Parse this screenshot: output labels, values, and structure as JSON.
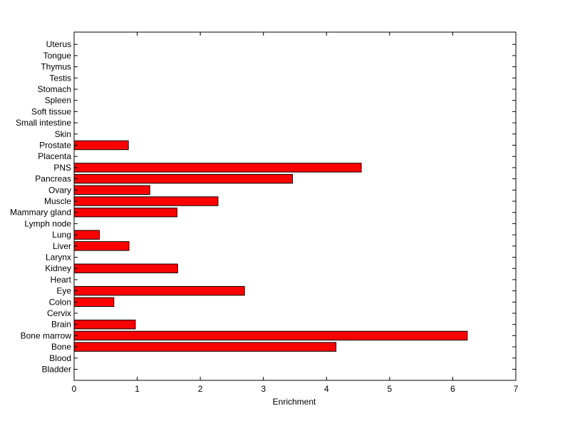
{
  "colors": {
    "bar_fill": "#ff0000",
    "bar_stroke": "#000000",
    "axis": "#000000",
    "background": "#ffffff"
  },
  "chart_data": {
    "type": "bar",
    "orientation": "horizontal",
    "title": "",
    "xlabel": "Enrichment",
    "ylabel": "",
    "xlim": [
      0,
      7
    ],
    "xticks": [
      "0",
      "1",
      "2",
      "3",
      "4",
      "5",
      "6",
      "7"
    ],
    "grid": false,
    "categories": [
      "Bladder",
      "Blood",
      "Bone",
      "Bone marrow",
      "Brain",
      "Cervix",
      "Colon",
      "Eye",
      "Heart",
      "Kidney",
      "Larynx",
      "Liver",
      "Lung",
      "Lymph node",
      "Mammary gland",
      "Muscle",
      "Ovary",
      "Pancreas",
      "PNS",
      "Placenta",
      "Prostate",
      "Skin",
      "Small intestine",
      "Soft tissue",
      "Spleen",
      "Stomach",
      "Testis",
      "Thymus",
      "Tongue",
      "Uterus"
    ],
    "values": [
      0,
      0,
      4.15,
      6.23,
      0.97,
      0,
      0.63,
      2.7,
      0,
      1.64,
      0,
      0.87,
      0.4,
      0,
      1.63,
      2.28,
      1.2,
      3.46,
      4.55,
      0,
      0.86,
      0,
      0,
      0,
      0,
      0,
      0,
      0,
      0,
      0
    ]
  }
}
